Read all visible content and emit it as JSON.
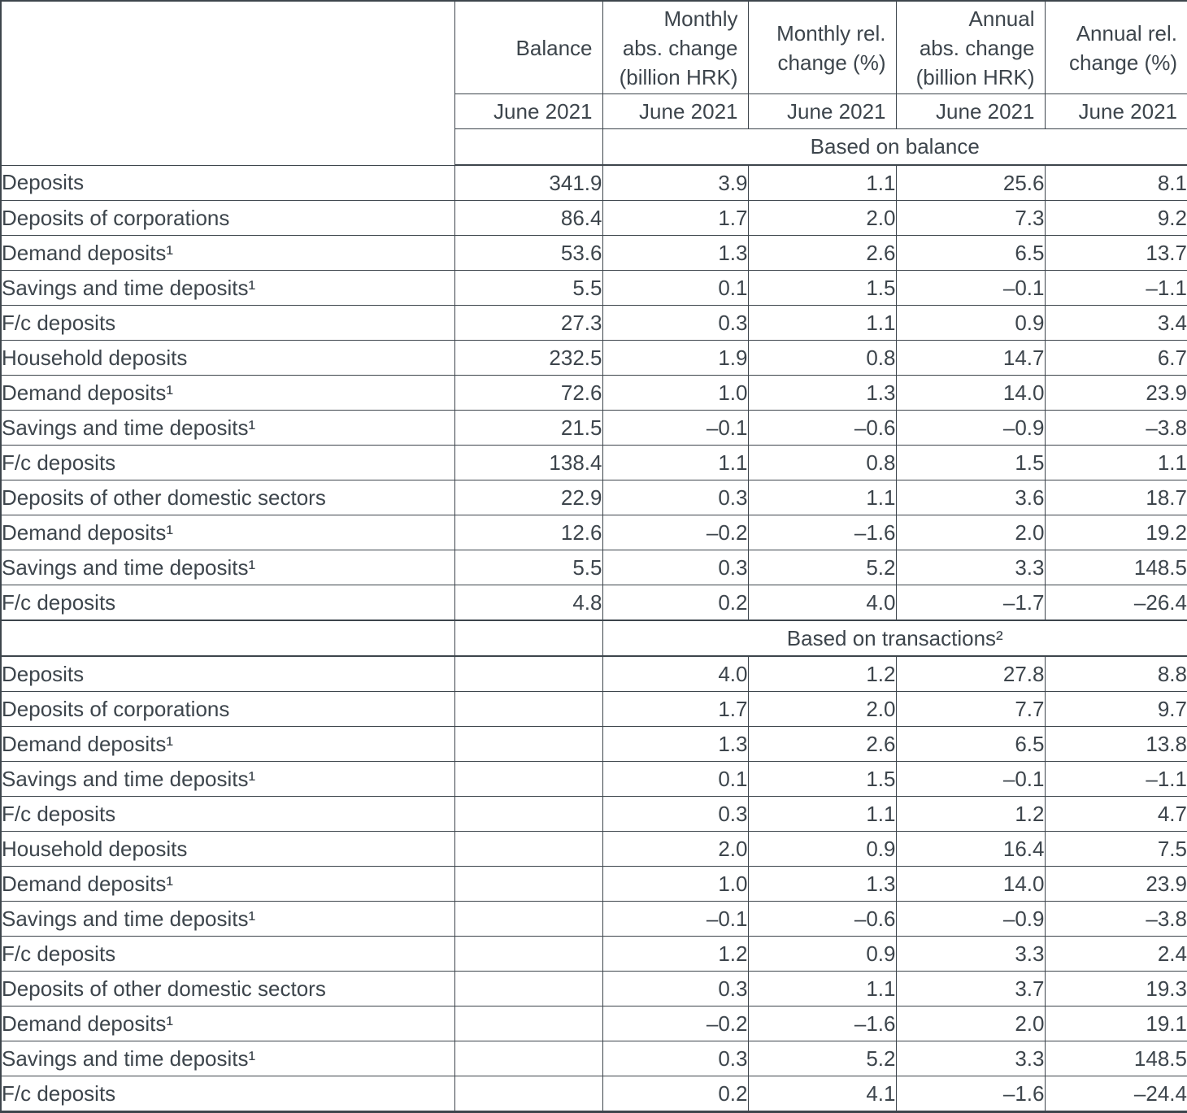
{
  "table": {
    "columns": [
      "",
      "Balance",
      "Monthly\nabs. change\n(billion HRK)",
      "Monthly rel.\nchange (%)",
      "Annual\nabs. change\n(billion HRK)",
      "Annual rel.\nchange (%)"
    ],
    "date_label": "June 2021",
    "sections": [
      {
        "title": "Based on balance",
        "rows": [
          {
            "label": "Deposits",
            "indent": 0,
            "values": [
              "341.9",
              "3.9",
              "1.1",
              "25.6",
              "8.1"
            ]
          },
          {
            "label": "Deposits of corporations",
            "indent": 1,
            "values": [
              "86.4",
              "1.7",
              "2.0",
              "7.3",
              "9.2"
            ]
          },
          {
            "label": "Demand deposits¹",
            "indent": 2,
            "values": [
              "53.6",
              "1.3",
              "2.6",
              "6.5",
              "13.7"
            ]
          },
          {
            "label": "Savings and time deposits¹",
            "indent": 2,
            "values": [
              "5.5",
              "0.1",
              "1.5",
              "–0.1",
              "–1.1"
            ]
          },
          {
            "label": "F/c deposits",
            "indent": 2,
            "values": [
              "27.3",
              "0.3",
              "1.1",
              "0.9",
              "3.4"
            ]
          },
          {
            "label": "Household deposits",
            "indent": 1,
            "values": [
              "232.5",
              "1.9",
              "0.8",
              "14.7",
              "6.7"
            ]
          },
          {
            "label": "Demand deposits¹",
            "indent": 2,
            "values": [
              "72.6",
              "1.0",
              "1.3",
              "14.0",
              "23.9"
            ]
          },
          {
            "label": "Savings and time deposits¹",
            "indent": 2,
            "values": [
              "21.5",
              "–0.1",
              "–0.6",
              "–0.9",
              "–3.8"
            ]
          },
          {
            "label": "F/c deposits",
            "indent": 2,
            "values": [
              "138.4",
              "1.1",
              "0.8",
              "1.5",
              "1.1"
            ]
          },
          {
            "label": "Deposits of other domestic sectors",
            "indent": 1,
            "values": [
              "22.9",
              "0.3",
              "1.1",
              "3.6",
              "18.7"
            ]
          },
          {
            "label": "Demand deposits¹",
            "indent": 2,
            "values": [
              "12.6",
              "–0.2",
              "–1.6",
              "2.0",
              "19.2"
            ]
          },
          {
            "label": "Savings and time deposits¹",
            "indent": 2,
            "values": [
              "5.5",
              "0.3",
              "5.2",
              "3.3",
              "148.5"
            ]
          },
          {
            "label": "F/c deposits",
            "indent": 2,
            "values": [
              "4.8",
              "0.2",
              "4.0",
              "–1.7",
              "–26.4"
            ]
          }
        ]
      },
      {
        "title": "Based on transactions²",
        "rows": [
          {
            "label": "Deposits",
            "indent": 0,
            "values": [
              "",
              "4.0",
              "1.2",
              "27.8",
              "8.8"
            ]
          },
          {
            "label": "Deposits of corporations",
            "indent": 1,
            "values": [
              "",
              "1.7",
              "2.0",
              "7.7",
              "9.7"
            ]
          },
          {
            "label": "Demand deposits¹",
            "indent": 2,
            "values": [
              "",
              "1.3",
              "2.6",
              "6.5",
              "13.8"
            ]
          },
          {
            "label": "Savings and time deposits¹",
            "indent": 2,
            "values": [
              "",
              "0.1",
              "1.5",
              "–0.1",
              "–1.1"
            ]
          },
          {
            "label": "F/c deposits",
            "indent": 2,
            "values": [
              "",
              "0.3",
              "1.1",
              "1.2",
              "4.7"
            ]
          },
          {
            "label": "Household deposits",
            "indent": 1,
            "values": [
              "",
              "2.0",
              "0.9",
              "16.4",
              "7.5"
            ]
          },
          {
            "label": "Demand deposits¹",
            "indent": 2,
            "values": [
              "",
              "1.0",
              "1.3",
              "14.0",
              "23.9"
            ]
          },
          {
            "label": "Savings and time deposits¹",
            "indent": 2,
            "values": [
              "",
              "–0.1",
              "–0.6",
              "–0.9",
              "–3.8"
            ]
          },
          {
            "label": "F/c deposits",
            "indent": 2,
            "values": [
              "",
              "1.2",
              "0.9",
              "3.3",
              "2.4"
            ]
          },
          {
            "label": "Deposits of other domestic sectors",
            "indent": 1,
            "values": [
              "",
              "0.3",
              "1.1",
              "3.7",
              "19.3"
            ]
          },
          {
            "label": "Demand deposits¹",
            "indent": 2,
            "values": [
              "",
              "–0.2",
              "–1.6",
              "2.0",
              "19.1"
            ]
          },
          {
            "label": "Savings and time deposits¹",
            "indent": 2,
            "values": [
              "",
              "0.3",
              "5.2",
              "3.3",
              "148.5"
            ]
          },
          {
            "label": "F/c deposits",
            "indent": 2,
            "values": [
              "",
              "0.2",
              "4.1",
              "–1.6",
              "–24.4"
            ]
          }
        ]
      }
    ]
  }
}
